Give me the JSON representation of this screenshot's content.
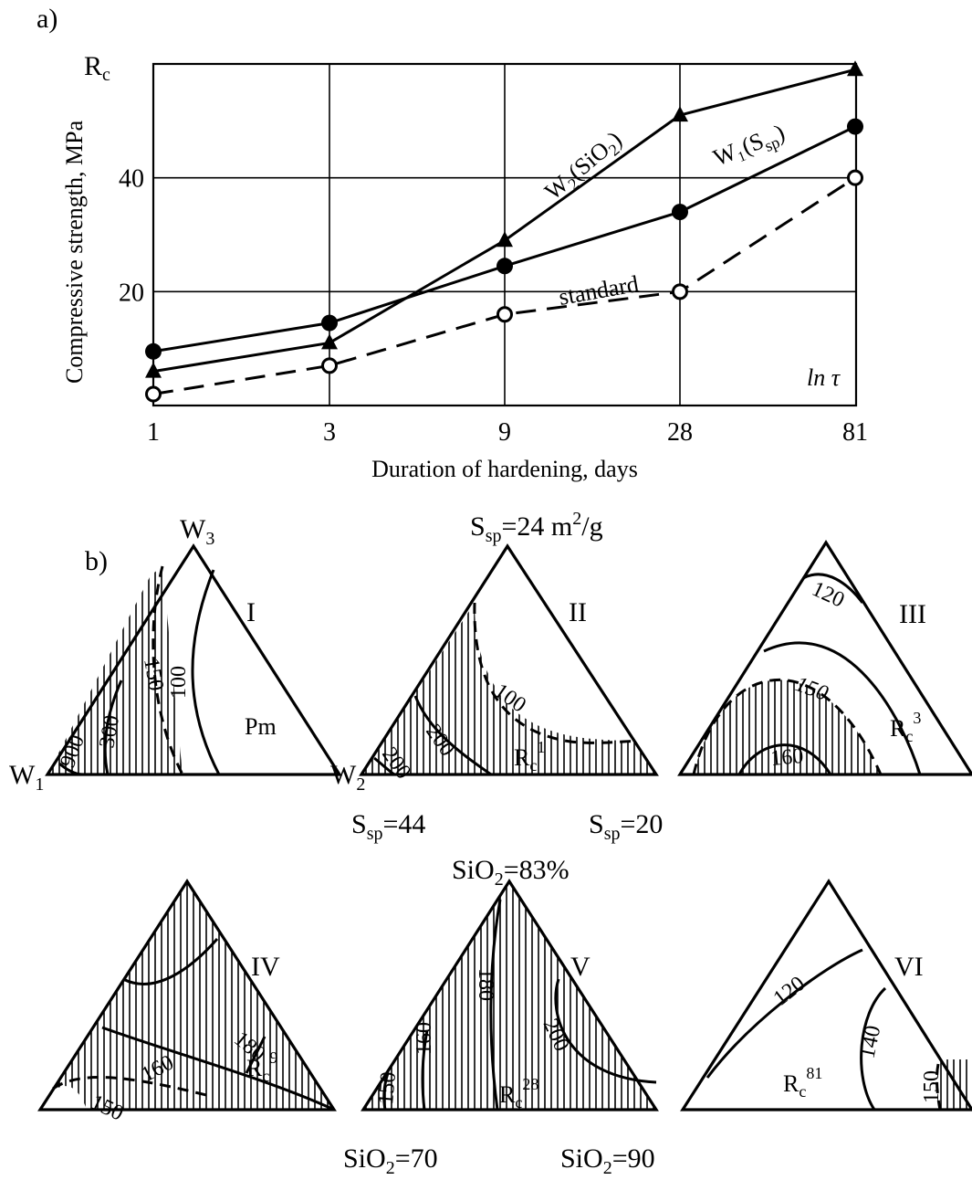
{
  "panel_a": {
    "label": "a)",
    "y_axis_symbol": "R",
    "y_axis_symbol_sub": "c",
    "ylabel": "Compressive strength,  MPa",
    "xlabel": "Duration of hardening, days",
    "x_axis_annotation": "ln τ"
  },
  "chart_data": [
    {
      "type": "line",
      "panel": "a",
      "x_scale": "log",
      "categories": [
        "1",
        "3",
        "9",
        "28",
        "81"
      ],
      "x": [
        1,
        3,
        9,
        28,
        81
      ],
      "ylim": [
        0,
        60
      ],
      "y_ticks": [
        "20",
        "40"
      ],
      "y_tick_values": [
        20,
        40
      ],
      "grid": true,
      "series": [
        {
          "name": "W₂(SiO₂)",
          "marker": "triangle-filled",
          "style": "solid",
          "values": [
            6,
            11,
            29,
            51,
            59
          ]
        },
        {
          "name": "W₁(S",
          "name_sub": "sp",
          "name_end": ")",
          "marker": "circle-filled",
          "style": "solid",
          "values": [
            9.5,
            14.5,
            24.5,
            34,
            49
          ]
        },
        {
          "name": "standard",
          "marker": "circle-open",
          "style": "dashed",
          "values": [
            2,
            7,
            16,
            20,
            40
          ]
        }
      ]
    }
  ],
  "panel_b": {
    "label": "b)",
    "top_row": {
      "vertex_top": "W",
      "vertex_top_sub": "3",
      "vertex_left": "W",
      "vertex_left_sub": "1",
      "vertex_mid": "W",
      "vertex_mid_sub": "2",
      "top_note": "S",
      "top_note_sub": "sp",
      "top_note_rest": "=24 m",
      "top_note_sup": "2",
      "top_note_end": "/g",
      "bottom_left_note": "S",
      "bottom_left_note_sub": "sp",
      "bottom_left_note_rest": "=44",
      "bottom_right_note": "S",
      "bottom_right_note_sub": "sp",
      "bottom_right_note_rest": "=20"
    },
    "bottom_row": {
      "top_note": "SiO",
      "top_note_sub": "2",
      "top_note_rest": "=83%",
      "bottom_left_note": "SiO",
      "bottom_left_note_sub": "2",
      "bottom_left_note_rest": "=70",
      "bottom_right_note": "SiO",
      "bottom_right_note_sub": "2",
      "bottom_right_note_rest": "=90"
    },
    "triangles": [
      {
        "roman": "I",
        "property": "Pm",
        "property_sub": "",
        "property_sup": "",
        "isolines": [
          "900",
          "300",
          "150",
          "100"
        ]
      },
      {
        "roman": "II",
        "property": "R",
        "property_sub": "c",
        "property_sup": "1",
        "isolines": [
          "200",
          "200",
          "100"
        ]
      },
      {
        "roman": "III",
        "property": "R",
        "property_sub": "c",
        "property_sup": "3",
        "isolines": [
          "120",
          "150",
          "160"
        ]
      },
      {
        "roman": "IV",
        "property": "R",
        "property_sub": "c",
        "property_sup": "9",
        "isolines": [
          "180",
          "160",
          "150"
        ]
      },
      {
        "roman": "V",
        "property": "R",
        "property_sub": "c",
        "property_sup": "28",
        "isolines": [
          "150",
          "160",
          "180",
          "200"
        ]
      },
      {
        "roman": "VI",
        "property": "R",
        "property_sub": "c",
        "property_sup": "81",
        "isolines": [
          "120",
          "140",
          "150"
        ]
      }
    ]
  }
}
